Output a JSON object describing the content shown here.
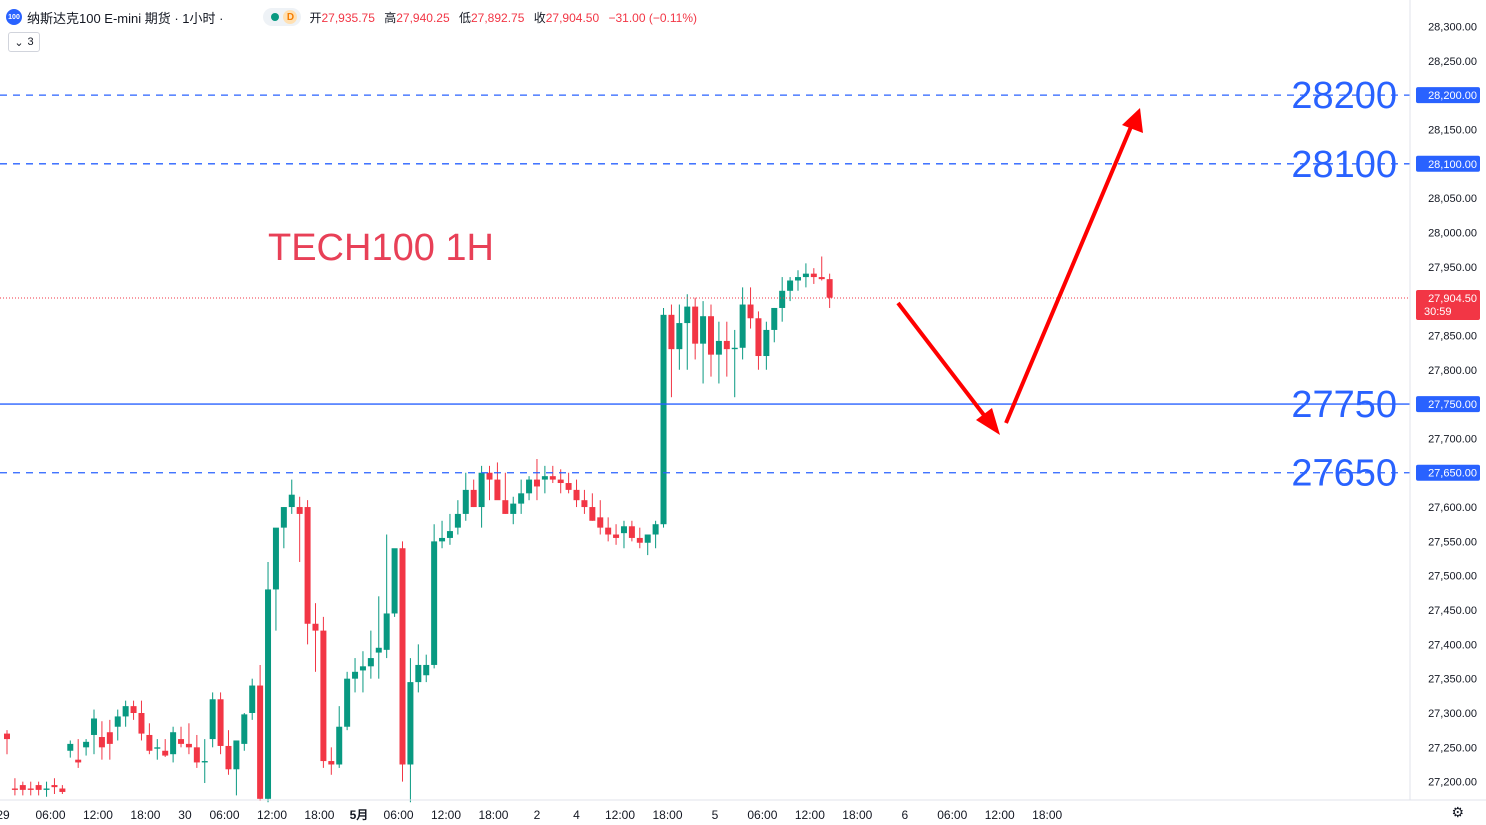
{
  "header": {
    "symbol_badge": "100",
    "title": "纳斯达克100 E-mini 期货 · 1小时 ·",
    "session_badge": "D",
    "ohlc": [
      {
        "k": "开",
        "v": "27,935.75"
      },
      {
        "k": "高",
        "v": "27,940.25"
      },
      {
        "k": "低",
        "v": "27,892.75"
      },
      {
        "k": "收",
        "v": "27,904.50"
      }
    ],
    "change": "−31.00 (−0.11%)"
  },
  "indicator_toggle": {
    "chevron": "chevron-down-icon",
    "count": "3"
  },
  "annotation_text": "TECH100 1H",
  "levels": [
    {
      "price": 28200,
      "big_label": "28200",
      "tag": "28,200.00",
      "style": "dashed"
    },
    {
      "price": 28100,
      "big_label": "28100",
      "tag": "28,100.00",
      "style": "dashed"
    },
    {
      "price": 27750,
      "big_label": "27750",
      "tag": "27,750.00",
      "style": "solid"
    },
    {
      "price": 27650,
      "big_label": "27650",
      "tag": "27,650.00",
      "style": "dashed"
    }
  ],
  "current_price": {
    "price": 27904.5,
    "label": "27,904.50",
    "countdown": "30:59"
  },
  "colors": {
    "up": "#089981",
    "down": "#f23645",
    "level": "#2962ff",
    "arrow": "#ff0000",
    "annotation": "#e84057"
  },
  "chart_data": {
    "type": "candlestick",
    "ylim": [
      27160,
      28320
    ],
    "y_ticks": [
      {
        "v": 28300,
        "t": "28,300.00"
      },
      {
        "v": 28250,
        "t": "28,250.00"
      },
      {
        "v": 28150,
        "t": "28,150.00"
      },
      {
        "v": 28050,
        "t": "28,050.00"
      },
      {
        "v": 28000,
        "t": "28,000.00"
      },
      {
        "v": 27950,
        "t": "27,950.00"
      },
      {
        "v": 27850,
        "t": "27,850.00"
      },
      {
        "v": 27800,
        "t": "27,800.00"
      },
      {
        "v": 27700,
        "t": "27,700.00"
      },
      {
        "v": 27600,
        "t": "27,600.00"
      },
      {
        "v": 27550,
        "t": "27,550.00"
      },
      {
        "v": 27500,
        "t": "27,500.00"
      },
      {
        "v": 27450,
        "t": "27,450.00"
      },
      {
        "v": 27400,
        "t": "27,400.00"
      },
      {
        "v": 27350,
        "t": "27,350.00"
      },
      {
        "v": 27300,
        "t": "27,300.00"
      },
      {
        "v": 27250,
        "t": "27,250.00"
      },
      {
        "v": 27200,
        "t": "27,200.00"
      }
    ],
    "x_ticks": [
      {
        "i": -0.5,
        "t": "29"
      },
      {
        "i": 5.5,
        "t": "06:00"
      },
      {
        "i": 11.5,
        "t": "12:00"
      },
      {
        "i": 17.5,
        "t": "18:00"
      },
      {
        "i": 22.5,
        "t": "30"
      },
      {
        "i": 27.5,
        "t": "06:00"
      },
      {
        "i": 33.5,
        "t": "12:00"
      },
      {
        "i": 39.5,
        "t": "18:00"
      },
      {
        "i": 44.5,
        "t": "5月",
        "bold": true
      },
      {
        "i": 49.5,
        "t": "06:00"
      },
      {
        "i": 55.5,
        "t": "12:00"
      },
      {
        "i": 61.5,
        "t": "18:00"
      },
      {
        "i": 67,
        "t": "2"
      },
      {
        "i": 72,
        "t": "4"
      },
      {
        "i": 77.5,
        "t": "12:00"
      },
      {
        "i": 83.5,
        "t": "18:00"
      },
      {
        "i": 89.5,
        "t": "5"
      },
      {
        "i": 95.5,
        "t": "06:00"
      },
      {
        "i": 101.5,
        "t": "12:00"
      },
      {
        "i": 107.5,
        "t": "18:00"
      },
      {
        "i": 113.5,
        "t": "6"
      },
      {
        "i": 119.5,
        "t": "06:00"
      },
      {
        "i": 125.5,
        "t": "12:00"
      },
      {
        "i": 131.5,
        "t": "18:00"
      }
    ],
    "candles": [
      [
        27270,
        27275,
        27240,
        27262
      ],
      [
        27190,
        27205,
        27180,
        27188
      ],
      [
        27195,
        27200,
        27180,
        27188
      ],
      [
        27190,
        27200,
        27180,
        27188
      ],
      [
        27195,
        27200,
        27180,
        27188
      ],
      [
        27188,
        27200,
        27178,
        27190
      ],
      [
        27195,
        27205,
        27182,
        27192
      ],
      [
        27190,
        27195,
        27182,
        27185
      ],
      [
        27245,
        27260,
        27235,
        27255
      ],
      [
        27232,
        27262,
        27220,
        27228
      ],
      [
        27250,
        27262,
        27238,
        27258
      ],
      [
        27268,
        27305,
        27240,
        27292
      ],
      [
        27265,
        27288,
        27232,
        27250
      ],
      [
        27272,
        27290,
        27232,
        27255
      ],
      [
        27280,
        27305,
        27260,
        27295
      ],
      [
        27295,
        27318,
        27280,
        27310
      ],
      [
        27310,
        27318,
        27290,
        27300
      ],
      [
        27300,
        27318,
        27260,
        27270
      ],
      [
        27268,
        27285,
        27240,
        27245
      ],
      [
        27248,
        27262,
        27232,
        27250
      ],
      [
        27245,
        27262,
        27236,
        27238
      ],
      [
        27240,
        27280,
        27228,
        27272
      ],
      [
        27262,
        27280,
        27250,
        27255
      ],
      [
        27255,
        27285,
        27240,
        27250
      ],
      [
        27250,
        27268,
        27220,
        27228
      ],
      [
        27228,
        27262,
        27198,
        27230
      ],
      [
        27262,
        27330,
        27250,
        27320
      ],
      [
        27320,
        27330,
        27240,
        27252
      ],
      [
        27252,
        27275,
        27210,
        27218
      ],
      [
        27218,
        27255,
        27180,
        27260
      ],
      [
        27255,
        27300,
        27245,
        27298
      ],
      [
        27300,
        27350,
        27290,
        27340
      ],
      [
        27340,
        27370,
        27172,
        27175
      ],
      [
        27175,
        27520,
        27170,
        27480
      ],
      [
        27480,
        27560,
        27420,
        27570
      ],
      [
        27570,
        27600,
        27540,
        27600
      ],
      [
        27600,
        27640,
        27590,
        27618
      ],
      [
        27600,
        27615,
        27520,
        27590
      ],
      [
        27600,
        27610,
        27400,
        27430
      ],
      [
        27430,
        27460,
        27360,
        27420
      ],
      [
        27420,
        27440,
        27220,
        27230
      ],
      [
        27230,
        27250,
        27210,
        27225
      ],
      [
        27225,
        27310,
        27220,
        27280
      ],
      [
        27280,
        27360,
        27275,
        27350
      ],
      [
        27350,
        27380,
        27330,
        27360
      ],
      [
        27362,
        27390,
        27330,
        27368
      ],
      [
        27368,
        27420,
        27350,
        27380
      ],
      [
        27388,
        27470,
        27350,
        27395
      ],
      [
        27392,
        27560,
        27380,
        27445
      ],
      [
        27445,
        27530,
        27440,
        27540
      ],
      [
        27540,
        27550,
        27200,
        27225
      ],
      [
        27225,
        27380,
        27170,
        27345
      ],
      [
        27345,
        27400,
        27330,
        27370
      ],
      [
        27355,
        27385,
        27345,
        27370
      ],
      [
        27370,
        27575,
        27365,
        27550
      ],
      [
        27550,
        27580,
        27540,
        27555
      ],
      [
        27555,
        27590,
        27545,
        27565
      ],
      [
        27570,
        27610,
        27560,
        27590
      ],
      [
        27590,
        27650,
        27580,
        27625
      ],
      [
        27625,
        27640,
        27600,
        27600
      ],
      [
        27600,
        27660,
        27570,
        27650
      ],
      [
        27650,
        27660,
        27610,
        27640
      ],
      [
        27640,
        27665,
        27620,
        27610
      ],
      [
        27610,
        27650,
        27590,
        27590
      ],
      [
        27590,
        27615,
        27575,
        27605
      ],
      [
        27605,
        27640,
        27590,
        27620
      ],
      [
        27620,
        27645,
        27610,
        27640
      ],
      [
        27640,
        27670,
        27610,
        27630
      ],
      [
        27640,
        27660,
        27620,
        27645
      ],
      [
        27645,
        27660,
        27635,
        27640
      ],
      [
        27640,
        27655,
        27620,
        27635
      ],
      [
        27635,
        27650,
        27620,
        27625
      ],
      [
        27625,
        27640,
        27600,
        27610
      ],
      [
        27610,
        27625,
        27590,
        27600
      ],
      [
        27600,
        27620,
        27580,
        27580
      ],
      [
        27585,
        27610,
        27560,
        27570
      ],
      [
        27570,
        27585,
        27550,
        27560
      ],
      [
        27560,
        27575,
        27545,
        27555
      ],
      [
        27562,
        27580,
        27540,
        27572
      ],
      [
        27572,
        27580,
        27550,
        27555
      ],
      [
        27555,
        27570,
        27540,
        27548
      ],
      [
        27548,
        27560,
        27530,
        27560
      ],
      [
        27560,
        27580,
        27540,
        27575
      ],
      [
        27575,
        27890,
        27570,
        27880
      ],
      [
        27880,
        27895,
        27760,
        27830
      ],
      [
        27830,
        27895,
        27800,
        27868
      ],
      [
        27868,
        27910,
        27800,
        27892
      ],
      [
        27892,
        27905,
        27815,
        27838
      ],
      [
        27838,
        27900,
        27780,
        27878
      ],
      [
        27878,
        27895,
        27790,
        27822
      ],
      [
        27822,
        27870,
        27780,
        27842
      ],
      [
        27842,
        27870,
        27790,
        27830
      ],
      [
        27830,
        27858,
        27760,
        27832
      ],
      [
        27832,
        27920,
        27815,
        27895
      ],
      [
        27895,
        27920,
        27860,
        27875
      ],
      [
        27875,
        27885,
        27800,
        27820
      ],
      [
        27820,
        27870,
        27800,
        27858
      ],
      [
        27858,
        27890,
        27840,
        27890
      ],
      [
        27890,
        27935,
        27870,
        27915
      ],
      [
        27915,
        27935,
        27900,
        27930
      ],
      [
        27930,
        27945,
        27915,
        27935
      ],
      [
        27935,
        27955,
        27920,
        27940
      ],
      [
        27940,
        27948,
        27925,
        27935
      ],
      [
        27935,
        27965,
        27930,
        27932
      ],
      [
        27932,
        27940,
        27890,
        27905
      ]
    ]
  }
}
